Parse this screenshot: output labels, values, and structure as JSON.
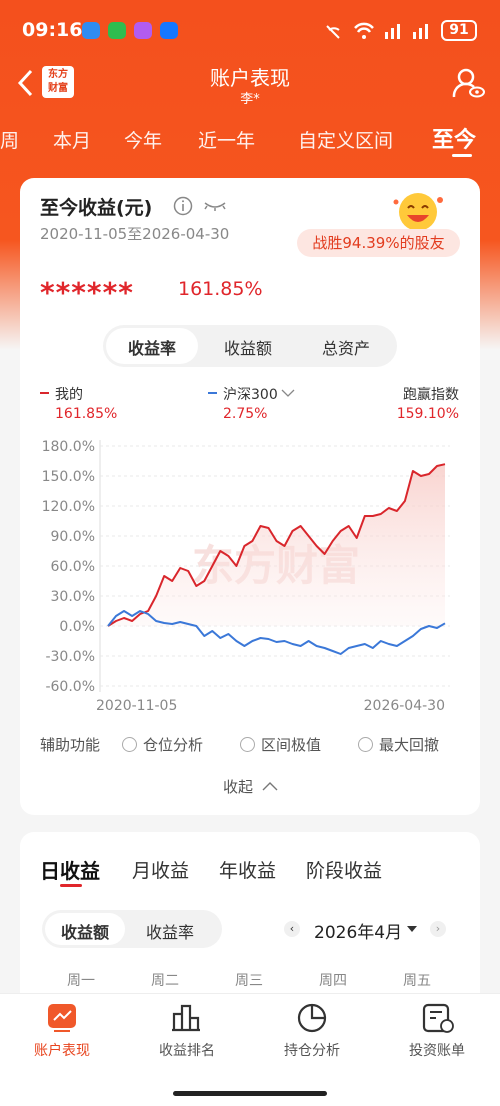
{
  "status_bar": {
    "time": "09:16",
    "battery": "91"
  },
  "header": {
    "title": "账户表现",
    "subtitle": "李*"
  },
  "tabs": [
    "周",
    "本月",
    "今年",
    "近一年",
    "自定义区间",
    "至今"
  ],
  "summary": {
    "title": "至今收益(元)",
    "date_range": "2020-11-05至2026-04-30",
    "badge": "战胜94.39%的股友",
    "masked_amount": "******",
    "return": "161.85%"
  },
  "segments": [
    "收益率",
    "收益额",
    "总资产"
  ],
  "chart_data": {
    "type": "line",
    "watermark": "东方财富",
    "legend": [
      {
        "name": "我的",
        "label": "161.85%"
      },
      {
        "name": "沪深300",
        "label": "2.75%"
      },
      {
        "name": "跑赢指数",
        "label": "159.10%"
      }
    ],
    "categories": [
      "2020-11-05",
      null,
      null,
      null,
      null,
      null,
      null,
      null,
      null,
      null,
      null,
      null,
      null,
      null,
      null,
      null,
      null,
      null,
      null,
      null,
      null,
      null,
      null,
      null,
      null,
      null,
      null,
      null,
      null,
      null,
      null,
      null,
      null,
      null,
      null,
      null,
      null,
      null,
      null,
      null,
      null,
      null,
      "2026-04-30"
    ],
    "series": [
      {
        "name": "我的",
        "color": "#d9262c",
        "values": [
          0,
          5,
          8,
          5,
          12,
          15,
          30,
          50,
          45,
          58,
          55,
          40,
          45,
          60,
          75,
          70,
          60,
          80,
          85,
          100,
          98,
          85,
          80,
          95,
          100,
          90,
          80,
          72,
          85,
          95,
          100,
          88,
          110,
          110,
          112,
          118,
          115,
          125,
          155,
          150,
          152,
          160,
          161.85
        ]
      },
      {
        "name": "沪深300",
        "color": "#3b78d8",
        "values": [
          0,
          10,
          15,
          10,
          15,
          12,
          5,
          3,
          2,
          4,
          2,
          0,
          -10,
          -5,
          -12,
          -8,
          -15,
          -20,
          -15,
          -12,
          -13,
          -16,
          -15,
          -18,
          -20,
          -15,
          -20,
          -22,
          -25,
          -28,
          -22,
          -20,
          -18,
          -22,
          -15,
          -18,
          -20,
          -15,
          -10,
          -3,
          0,
          -2,
          2.75
        ]
      }
    ],
    "ylim": [
      -60,
      180
    ],
    "yticks": [
      {
        "value": -60,
        "label": "-60.0%"
      },
      {
        "value": -30,
        "label": "-30.0%"
      },
      {
        "value": 0,
        "label": "0.0%"
      },
      {
        "value": 30,
        "label": "30.0%"
      },
      {
        "value": 60,
        "label": "60.0%"
      },
      {
        "value": 90,
        "label": "90.0%"
      },
      {
        "value": 120,
        "label": "120.0%"
      },
      {
        "value": 150,
        "label": "150.0%"
      },
      {
        "value": 180,
        "label": "180.0%"
      }
    ],
    "grid": true
  },
  "aux": {
    "label": "辅助功能",
    "options": [
      "仓位分析",
      "区间极值",
      "最大回撤"
    ],
    "collapse": "收起"
  },
  "daily": {
    "tabs": [
      "日收益",
      "月收益",
      "年收益",
      "阶段收益"
    ],
    "toggle": [
      "收益额",
      "收益率"
    ],
    "month": "2026年4月",
    "weekdays": [
      "周一",
      "周二",
      "周三",
      "周四",
      "周五"
    ]
  },
  "nav": [
    "账户表现",
    "收益排名",
    "持仓分析",
    "投资账单"
  ]
}
